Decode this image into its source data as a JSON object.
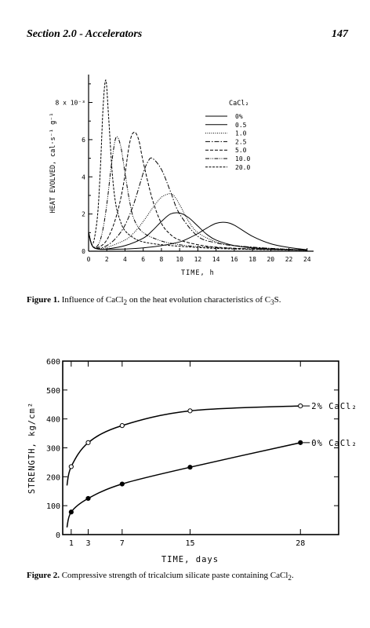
{
  "header": {
    "section": "Section 2.0 - Accelerators",
    "page": "147"
  },
  "fig1": {
    "caption_bold": "Figure 1.",
    "caption_text": " Influence of CaCl",
    "caption_sub": "2",
    "caption_text2": " on the heat evolution characteristics of C",
    "caption_sub2": "3",
    "caption_text3": "S."
  },
  "fig2": {
    "caption_bold": "Figure 2.",
    "caption_text": " Compressive strength of tricalcium silicate paste containing CaCl",
    "caption_sub": "2",
    "caption_end": "."
  },
  "chart_data": [
    {
      "type": "line",
      "xlabel": "TIME, h",
      "ylabel": "HEAT EVOLVED, cal·s⁻¹ g⁻¹",
      "y_unit_label": "8 x 10⁻³",
      "xlim": [
        0,
        26
      ],
      "ylim": [
        0,
        9.5
      ],
      "x_ticks": [
        0,
        2,
        4,
        6,
        8,
        10,
        12,
        14,
        16,
        18,
        20,
        22,
        24
      ],
      "x_tick_labels": [
        "0",
        "2",
        "4",
        "6",
        "8",
        "10",
        "12",
        "14",
        "16",
        "18",
        "20",
        "22",
        "24"
      ],
      "y_ticks": [
        0,
        2,
        4,
        6,
        8
      ],
      "y_tick_labels": [
        "0",
        "2",
        "4",
        "6",
        "8 x 10⁻³"
      ],
      "legend_title": "CaCl₂",
      "legend_position": "top-right",
      "series": [
        {
          "name": "0%",
          "dash": "none",
          "x": [
            0,
            0.4,
            1,
            2,
            4,
            6,
            8,
            10,
            11,
            12,
            13,
            14,
            15,
            16,
            18,
            20,
            22,
            24
          ],
          "y": [
            1.0,
            0.3,
            0.12,
            0.1,
            0.12,
            0.18,
            0.3,
            0.5,
            0.7,
            0.95,
            1.25,
            1.5,
            1.55,
            1.4,
            0.8,
            0.4,
            0.2,
            0.08
          ]
        },
        {
          "name": "0.5",
          "dash": "none",
          "x": [
            0,
            0.4,
            1,
            2,
            4,
            6,
            7,
            8,
            9,
            10,
            11,
            12,
            13,
            14,
            16,
            18,
            20,
            24
          ],
          "y": [
            1.0,
            0.3,
            0.12,
            0.12,
            0.3,
            0.7,
            1.1,
            1.6,
            2.0,
            2.05,
            1.8,
            1.35,
            0.9,
            0.6,
            0.3,
            0.18,
            0.12,
            0.06
          ]
        },
        {
          "name": "1.0",
          "dash": "1,1.5",
          "x": [
            0,
            0.4,
            1,
            2,
            4,
            5,
            6,
            7,
            8,
            9,
            9.5,
            10,
            11,
            12,
            14,
            16,
            20,
            24
          ],
          "y": [
            1.0,
            0.3,
            0.15,
            0.2,
            0.6,
            1.0,
            1.6,
            2.3,
            2.9,
            3.1,
            2.9,
            2.5,
            1.6,
            1.0,
            0.5,
            0.3,
            0.15,
            0.06
          ]
        },
        {
          "name": "2.5",
          "dash": "6,2,1.5,2",
          "x": [
            0,
            0.4,
            1,
            2,
            3,
            4,
            5,
            6,
            6.5,
            7,
            8,
            9,
            10,
            12,
            14,
            16,
            20,
            24
          ],
          "y": [
            1.0,
            0.3,
            0.15,
            0.3,
            0.7,
            1.4,
            2.6,
            4.2,
            4.8,
            5.0,
            4.4,
            3.2,
            2.0,
            0.8,
            0.45,
            0.3,
            0.15,
            0.06
          ]
        },
        {
          "name": "5.0",
          "dash": "4,2",
          "x": [
            0,
            0.4,
            1,
            2,
            3,
            3.8,
            4.5,
            5,
            5.5,
            6,
            7,
            8,
            9,
            10,
            12,
            14,
            18,
            24
          ],
          "y": [
            1.0,
            0.3,
            0.2,
            0.6,
            1.8,
            3.5,
            5.8,
            6.4,
            6.0,
            4.8,
            2.8,
            1.5,
            0.9,
            0.6,
            0.35,
            0.22,
            0.12,
            0.05
          ]
        },
        {
          "name": "10.0",
          "dash": "5,1.5,1,1.5,1,1.5",
          "x": [
            0,
            0.4,
            1,
            1.5,
            2,
            2.5,
            3,
            3.5,
            4,
            4.5,
            5,
            6,
            8,
            10,
            12,
            16,
            20,
            24
          ],
          "y": [
            1.0,
            0.3,
            0.3,
            1.0,
            2.5,
            4.6,
            6.1,
            5.7,
            4.2,
            2.7,
            1.7,
            1.0,
            0.55,
            0.35,
            0.25,
            0.15,
            0.1,
            0.05
          ]
        },
        {
          "name": "20.0",
          "dash": "3,1.5",
          "x": [
            0,
            0.3,
            0.6,
            1,
            1.3,
            1.6,
            1.9,
            2.2,
            2.6,
            3,
            3.5,
            4,
            5,
            6,
            8,
            12,
            16,
            24
          ],
          "y": [
            1.0,
            0.4,
            0.6,
            2.0,
            4.5,
            7.8,
            9.2,
            7.2,
            4.2,
            2.5,
            1.6,
            1.1,
            0.7,
            0.5,
            0.35,
            0.2,
            0.12,
            0.05
          ]
        }
      ]
    },
    {
      "type": "line",
      "xlabel": "TIME, days",
      "ylabel": "STRENGTH, kg/cm²",
      "xlim": [
        0,
        32.5
      ],
      "ylim": [
        0,
        600
      ],
      "x_ticks": [
        1,
        3,
        7,
        15,
        28
      ],
      "x_tick_labels": [
        "1",
        "3",
        "7",
        "15",
        "28"
      ],
      "y_ticks": [
        0,
        100,
        200,
        300,
        400,
        500,
        600
      ],
      "y_tick_labels": [
        "0",
        "100",
        "200",
        "300",
        "400",
        "500",
        "600"
      ],
      "series": [
        {
          "name": "2% CaCl₂",
          "marker": "open",
          "x": [
            1,
            3,
            7,
            15,
            28
          ],
          "y": [
            235,
            318,
            377,
            428,
            445
          ]
        },
        {
          "name": "0% CaCl₂",
          "marker": "filled",
          "x": [
            1,
            3,
            7,
            15,
            28
          ],
          "y": [
            78,
            125,
            175,
            233,
            318
          ]
        }
      ]
    }
  ]
}
